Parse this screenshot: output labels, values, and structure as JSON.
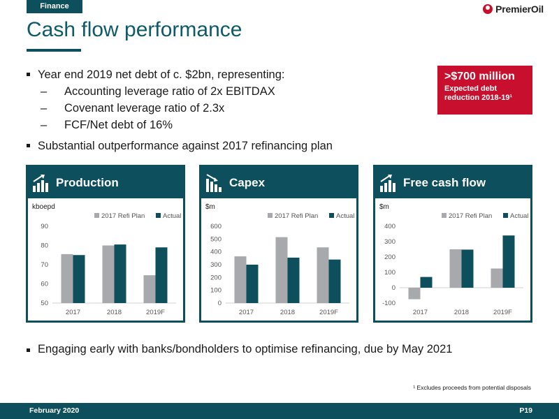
{
  "header": {
    "section_tag": "Finance",
    "logo_text": "PremierOil"
  },
  "title": "Cash flow performance",
  "bullets": {
    "b1": "Year end 2019 net debt of c. $2bn, representing:",
    "b1_subs": [
      "Accounting leverage ratio of 2x EBITDAX",
      "Covenant leverage ratio of 2.3x",
      "FCF/Net debt of 16%"
    ],
    "b2": "Substantial outperformance against 2017 refinancing plan",
    "dash": "–"
  },
  "callout": {
    "headline": ">$700 million",
    "line1": "Expected debt",
    "line2": "reduction 2018-19¹"
  },
  "panels": [
    {
      "title": "Production",
      "icon": "bar-chart-up-icon"
    },
    {
      "title": "Capex",
      "icon": "bar-chart-down-icon"
    },
    {
      "title": "Free cash flow",
      "icon": "bar-chart-up-icon"
    }
  ],
  "colors": {
    "plan": "#a7a9ac",
    "actual": "#0d4f5c",
    "brand": "#0d4f5c",
    "accent": "#c8102e"
  },
  "chart_data": [
    {
      "type": "bar",
      "title": "Production",
      "ylabel": "kboepd",
      "categories": [
        "2017",
        "2018",
        "2019F"
      ],
      "ylim": [
        50,
        90
      ],
      "yticks": [
        50,
        60,
        70,
        80,
        90
      ],
      "legend_position": "top-right",
      "series": [
        {
          "name": "2017 Refi Plan",
          "values": [
            75.5,
            80,
            64.5
          ]
        },
        {
          "name": "Actual",
          "values": [
            75,
            80.5,
            79
          ]
        }
      ]
    },
    {
      "type": "bar",
      "title": "Capex",
      "ylabel": "$m",
      "categories": [
        "2017",
        "2018",
        "2019F"
      ],
      "ylim": [
        0,
        600
      ],
      "yticks": [
        0,
        100,
        200,
        300,
        400,
        500,
        600
      ],
      "legend_position": "top-right",
      "series": [
        {
          "name": "2017 Refi Plan",
          "values": [
            365,
            515,
            435
          ]
        },
        {
          "name": "Actual",
          "values": [
            300,
            355,
            340
          ]
        }
      ]
    },
    {
      "type": "bar",
      "title": "Free cash flow",
      "ylabel": "$m",
      "categories": [
        "2017",
        "2018",
        "2019F"
      ],
      "ylim": [
        -100,
        400
      ],
      "yticks": [
        -100,
        0,
        100,
        200,
        300,
        400
      ],
      "legend_position": "top-right",
      "series": [
        {
          "name": "2017 Refi Plan",
          "values": [
            -75,
            250,
            125
          ]
        },
        {
          "name": "Actual",
          "values": [
            70,
            248,
            340
          ]
        }
      ]
    }
  ],
  "bottom_bullet": "Engaging early with banks/bondholders to optimise refinancing, due by May 2021",
  "footnote": "¹ Excludes proceeds from potential disposals",
  "footer": {
    "date": "February 2020",
    "page": "P19"
  }
}
